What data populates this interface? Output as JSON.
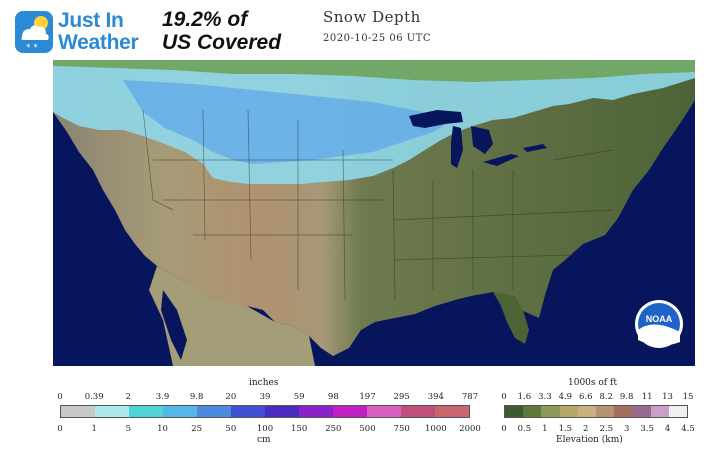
{
  "logo": {
    "line1": "Just In",
    "line2": "Weather",
    "icon": "weather-cloud-snow-icon"
  },
  "headline": {
    "line1": "19.2% of",
    "line2": "US Covered"
  },
  "map": {
    "title": "Snow Depth",
    "timestamp": "2020-10-25 06 UTC",
    "badge": "NOAA"
  },
  "snow_legend": {
    "top_unit": "inches",
    "top_ticks": [
      "0",
      "0.39",
      "2",
      "3.9",
      "9.8",
      "20",
      "39",
      "59",
      "98",
      "197",
      "295",
      "394",
      "787"
    ],
    "bottom_unit": "cm",
    "bottom_ticks": [
      "0",
      "1",
      "5",
      "10",
      "25",
      "50",
      "100",
      "150",
      "250",
      "500",
      "750",
      "1000",
      "2000"
    ],
    "colors": [
      "#c8c8c8",
      "#a9e8ec",
      "#4fd3d6",
      "#55b6ea",
      "#4a8ae0",
      "#3f4fd2",
      "#4a2cc2",
      "#8a22c8",
      "#c01fc2",
      "#d85ec0",
      "#c0507a",
      "#c8666e"
    ]
  },
  "elevation_legend": {
    "top_unit": "1000s of ft",
    "top_ticks": [
      "0",
      "1.6",
      "3.3",
      "4.9",
      "6.6",
      "8.2",
      "9.8",
      "11",
      "13",
      "15"
    ],
    "bottom_unit": "Elevation (km)",
    "bottom_ticks": [
      "0",
      "0.5",
      "1",
      "1.5",
      "2",
      "2.5",
      "3",
      "3.5",
      "4",
      "4.5"
    ],
    "colors": [
      "#3f5a2c",
      "#5d7a3c",
      "#8c9a55",
      "#b6a868",
      "#c9b080",
      "#b89270",
      "#a26f5c",
      "#9a6a8a",
      "#c8a0c8",
      "#f0f0f0"
    ]
  }
}
